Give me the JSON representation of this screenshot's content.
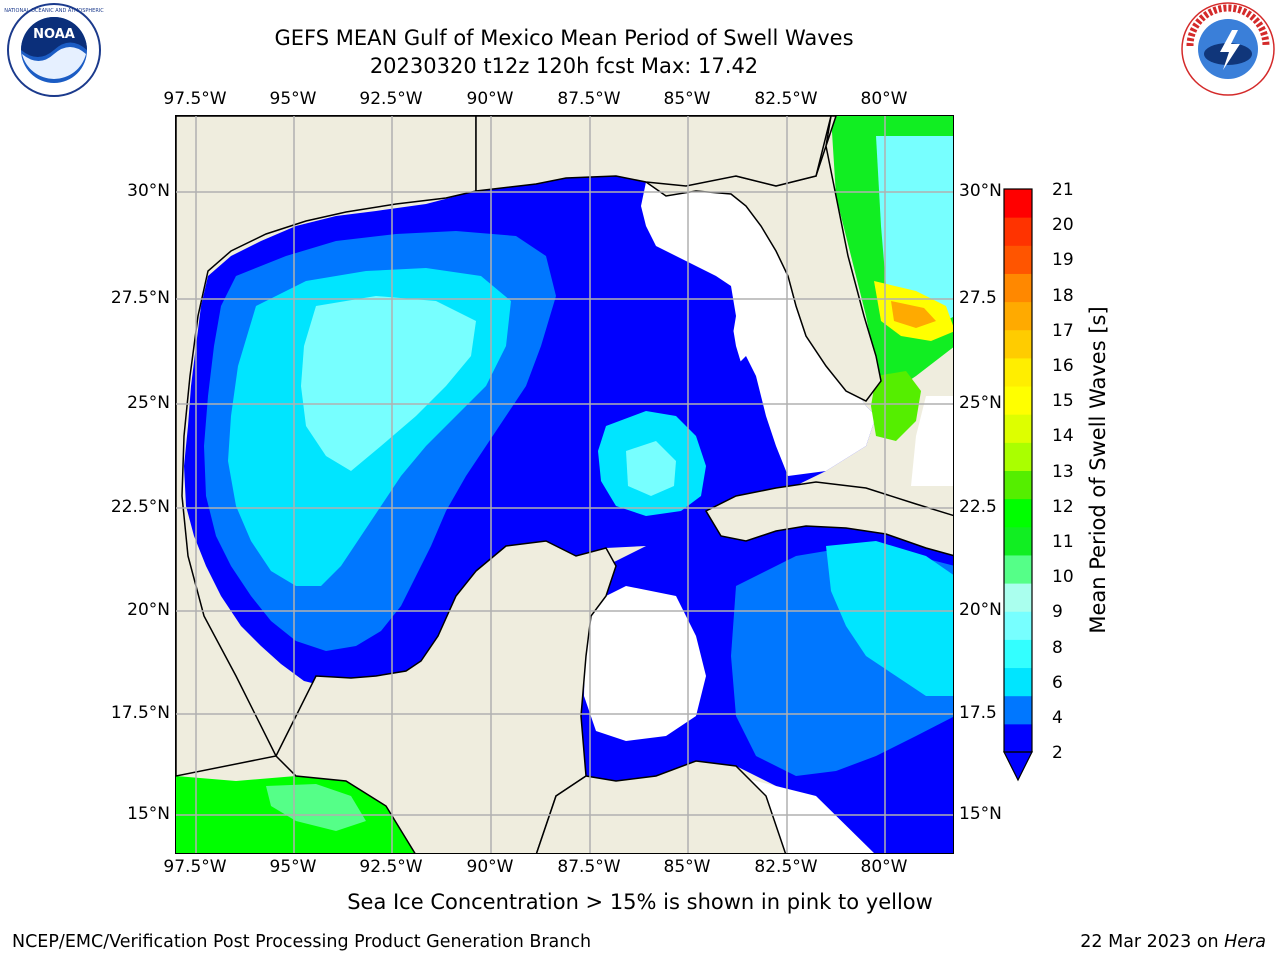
{
  "title": {
    "line1": "GEFS MEAN Gulf of Mexico Mean Period of Swell Waves",
    "line2": "20230320 t12z 120h fcst   Max: 17.42"
  },
  "map": {
    "lon_labels": [
      "97.5°W",
      "95°W",
      "92.5°W",
      "90°W",
      "87.5°W",
      "85°W",
      "82.5°W",
      "80°W"
    ],
    "lat_labels_left": [
      "30°N",
      "27.5°N",
      "25°N",
      "22.5°N",
      "20°N",
      "17.5°N",
      "15°N"
    ],
    "lat_labels_right": [
      "30°N",
      "27.5",
      "25°N",
      "22.5",
      "20°N",
      "17.5",
      "15°N"
    ],
    "extent": {
      "lon_min": -98.0,
      "lon_max": -78.2,
      "lat_min": 14.0,
      "lat_max": 31.8
    },
    "colors": {
      "land": "#efedde",
      "coast": "#000000",
      "grid": "#b0b0b0",
      "no_data": "#ffffff"
    }
  },
  "colorbar": {
    "label": "Mean Period of Swell Waves [s]",
    "ticks": [
      "21",
      "20",
      "19",
      "18",
      "17",
      "16",
      "15",
      "14",
      "13",
      "12",
      "11",
      "10",
      "9",
      "8",
      "6",
      "4",
      "2"
    ],
    "colors": [
      "#0000ff",
      "#0077ff",
      "#00e5ff",
      "#33ffff",
      "#77ffff",
      "#aaffee",
      "#55ff88",
      "#11ee22",
      "#00ff00",
      "#55ee00",
      "#aaff00",
      "#ddff00",
      "#ffff00",
      "#ffee00",
      "#ffcc00",
      "#ffaa00",
      "#ff8800",
      "#ff5500",
      "#ff3300",
      "#ff0000"
    ]
  },
  "note": "Sea Ice Concentration > 15% is shown in pink to yellow",
  "footer": {
    "left": "NCEP/EMC/Verification Post Processing Product Generation Branch",
    "date": "22 Mar 2023 on ",
    "host": "Hera"
  }
}
